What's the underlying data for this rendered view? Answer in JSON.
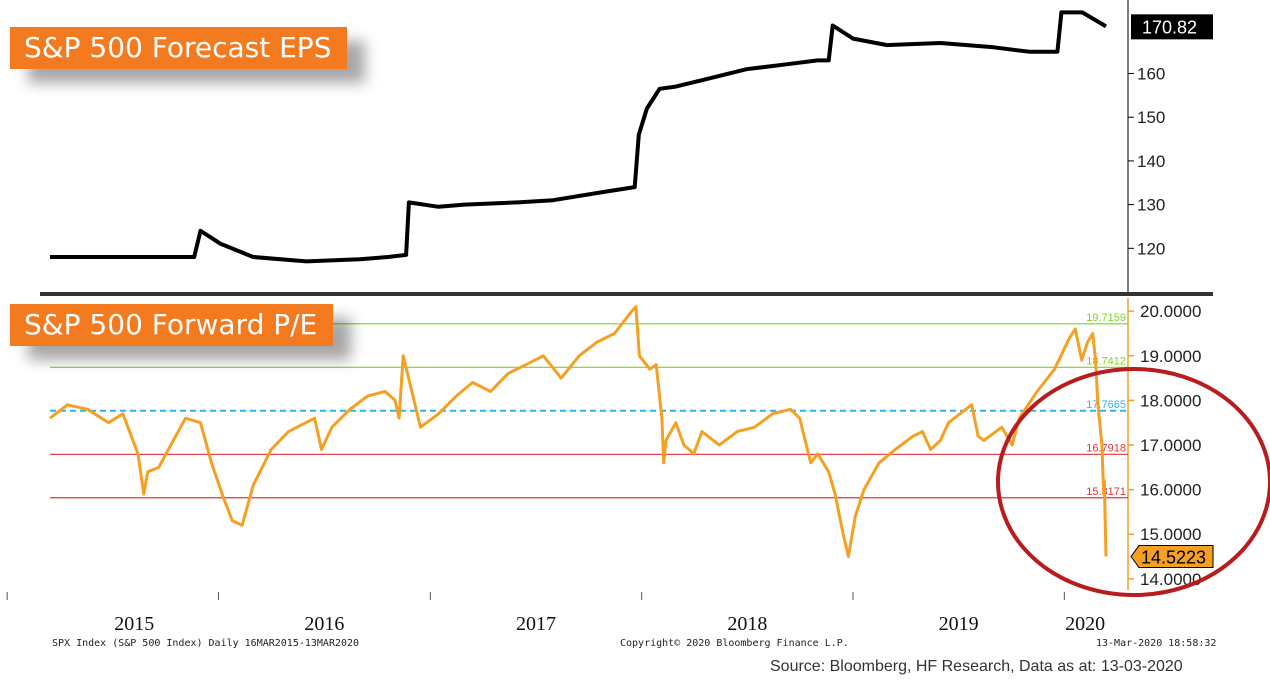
{
  "panels": {
    "eps_badge": "S&P 500 Forecast EPS",
    "pe_badge": "S&P 500 Forward P/E"
  },
  "footer": {
    "index_info": "SPX Index (S&P 500 Index)  Daily 16MAR2015-13MAR2020",
    "copyright": "Copyright© 2020 Bloomberg Finance L.P.",
    "timestamp": "13-Mar-2020 18:58:32",
    "source_note": "Source: Bloomberg, HF Research, Data as at: 13-03-2020"
  },
  "colors": {
    "eps_line": "#000000",
    "pe_line": "#f5a023",
    "mean_line": "#29b6e8",
    "plus_sd_lines": "#7ed321",
    "minus_sd_lines": "#e8303a",
    "highlight_circle": "#b81c1c",
    "divider": "#333333"
  },
  "chart_data": [
    {
      "type": "line",
      "title": "S&P 500 Forecast EPS",
      "x_tick_labels": [
        "2015",
        "2016",
        "2017",
        "2018",
        "2019",
        "2020"
      ],
      "x_tick_dates": [
        "2015-01-01",
        "2016-01-01",
        "2017-01-01",
        "2018-01-01",
        "2019-01-01",
        "2020-01-01"
      ],
      "xlim": [
        "2015-03-16",
        "2020-03-13"
      ],
      "ylim": [
        110,
        175
      ],
      "y_ticks": [
        120,
        130,
        140,
        150,
        160
      ],
      "last_value_label": "170.82",
      "grid": false,
      "series": [
        {
          "x": [
            "2015-03-16",
            "2015-06-01",
            "2015-09-01",
            "2015-11-20",
            "2015-12-01",
            "2016-01-05",
            "2016-03-01",
            "2016-06-01",
            "2016-09-01",
            "2016-10-20",
            "2016-11-20",
            "2016-11-25",
            "2017-01-15",
            "2017-03-01",
            "2017-06-01",
            "2017-08-01",
            "2017-11-01",
            "2017-12-20",
            "2017-12-27",
            "2018-01-10",
            "2018-02-01",
            "2018-03-01",
            "2018-05-01",
            "2018-07-01",
            "2018-09-01",
            "2018-11-01",
            "2018-11-20",
            "2018-11-27",
            "2019-01-01",
            "2019-03-01",
            "2019-06-01",
            "2019-09-01",
            "2019-11-01",
            "2019-12-20",
            "2019-12-27",
            "2020-02-01",
            "2020-03-13"
          ],
          "y": [
            118,
            118,
            118,
            118,
            124,
            121,
            118,
            117,
            117.5,
            118,
            118.5,
            130.5,
            129.5,
            130,
            130.5,
            131,
            133,
            134,
            146,
            152,
            156.5,
            157,
            159,
            161,
            162,
            163,
            163,
            171,
            168,
            166.5,
            167,
            166,
            165,
            165,
            174,
            174,
            170.8
          ]
        }
      ]
    },
    {
      "type": "line",
      "title": "S&P 500 Forward P/E",
      "x_tick_labels": [
        "2015",
        "2016",
        "2017",
        "2018",
        "2019",
        "2020"
      ],
      "x_tick_dates": [
        "2015-01-01",
        "2016-01-01",
        "2017-01-01",
        "2018-01-01",
        "2019-01-01",
        "2020-01-01"
      ],
      "xlim": [
        "2015-03-16",
        "2020-03-13"
      ],
      "ylim": [
        13.75,
        20.25
      ],
      "y_ticks": [
        14,
        15,
        16,
        17,
        18,
        19,
        20
      ],
      "y_tick_labels": [
        "14.0000",
        "15.0000",
        "16.0000",
        "17.0000",
        "18.0000",
        "19.0000",
        "20.0000"
      ],
      "last_value_label": "14.5223",
      "grid": false,
      "reference_lines": [
        {
          "value": 19.7159,
          "label": "19.7159",
          "kind": "+2sd"
        },
        {
          "value": 18.7412,
          "label": "18.7412",
          "kind": "+1sd"
        },
        {
          "value": 17.7665,
          "label": "17.7665",
          "kind": "mean"
        },
        {
          "value": 16.7918,
          "label": "16.7918",
          "kind": "-1sd"
        },
        {
          "value": 15.8171,
          "label": "15.8171",
          "kind": "-2sd"
        }
      ],
      "series": [
        {
          "x": [
            "2015-03-16",
            "2015-04-15",
            "2015-05-20",
            "2015-06-25",
            "2015-07-20",
            "2015-08-15",
            "2015-08-25",
            "2015-09-01",
            "2015-09-20",
            "2015-10-15",
            "2015-11-05",
            "2015-12-01",
            "2015-12-20",
            "2016-01-10",
            "2016-01-25",
            "2016-02-11",
            "2016-03-01",
            "2016-04-01",
            "2016-05-01",
            "2016-06-15",
            "2016-06-27",
            "2016-07-15",
            "2016-08-15",
            "2016-09-15",
            "2016-10-15",
            "2016-11-01",
            "2016-11-08",
            "2016-11-15",
            "2016-12-15",
            "2017-01-15",
            "2017-02-15",
            "2017-03-15",
            "2017-04-15",
            "2017-05-15",
            "2017-06-15",
            "2017-07-15",
            "2017-08-15",
            "2017-09-15",
            "2017-10-15",
            "2017-11-15",
            "2017-12-15",
            "2017-12-22",
            "2017-12-28",
            "2018-01-15",
            "2018-01-26",
            "2018-02-05",
            "2018-02-08",
            "2018-02-12",
            "2018-03-01",
            "2018-03-15",
            "2018-04-01",
            "2018-04-15",
            "2018-05-15",
            "2018-06-15",
            "2018-07-15",
            "2018-08-15",
            "2018-09-15",
            "2018-10-01",
            "2018-10-20",
            "2018-11-01",
            "2018-11-20",
            "2018-12-01",
            "2018-12-15",
            "2018-12-24",
            "2019-01-05",
            "2019-01-20",
            "2019-02-15",
            "2019-03-15",
            "2019-04-15",
            "2019-05-01",
            "2019-05-15",
            "2019-06-01",
            "2019-06-15",
            "2019-07-25",
            "2019-08-05",
            "2019-08-15",
            "2019-09-15",
            "2019-10-03",
            "2019-10-15",
            "2019-11-15",
            "2019-12-15",
            "2020-01-10",
            "2020-01-20",
            "2020-01-31",
            "2020-02-10",
            "2020-02-19",
            "2020-02-24",
            "2020-02-28",
            "2020-03-03",
            "2020-03-06",
            "2020-03-09",
            "2020-03-10",
            "2020-03-12",
            "2020-03-13"
          ],
          "y": [
            17.6,
            17.9,
            17.8,
            17.5,
            17.7,
            16.8,
            15.9,
            16.4,
            16.5,
            17.1,
            17.6,
            17.5,
            16.6,
            15.8,
            15.3,
            15.2,
            16.1,
            16.9,
            17.3,
            17.6,
            16.9,
            17.4,
            17.8,
            18.1,
            18.2,
            18.0,
            17.6,
            19.0,
            17.4,
            17.7,
            18.1,
            18.4,
            18.2,
            18.6,
            18.8,
            19.0,
            18.5,
            19.0,
            19.3,
            19.5,
            20.0,
            20.1,
            19.0,
            18.7,
            18.8,
            17.6,
            16.6,
            17.1,
            17.5,
            17.0,
            16.8,
            17.3,
            17.0,
            17.3,
            17.4,
            17.7,
            17.8,
            17.6,
            16.6,
            16.8,
            16.4,
            15.9,
            15.0,
            14.5,
            15.4,
            16.0,
            16.6,
            16.9,
            17.2,
            17.3,
            16.9,
            17.1,
            17.5,
            17.9,
            17.2,
            17.1,
            17.4,
            17.0,
            17.6,
            18.2,
            18.7,
            19.4,
            19.6,
            18.9,
            19.3,
            19.5,
            18.9,
            17.9,
            17.4,
            17.0,
            15.9,
            16.2,
            15.1,
            14.5
          ]
        }
      ]
    }
  ]
}
